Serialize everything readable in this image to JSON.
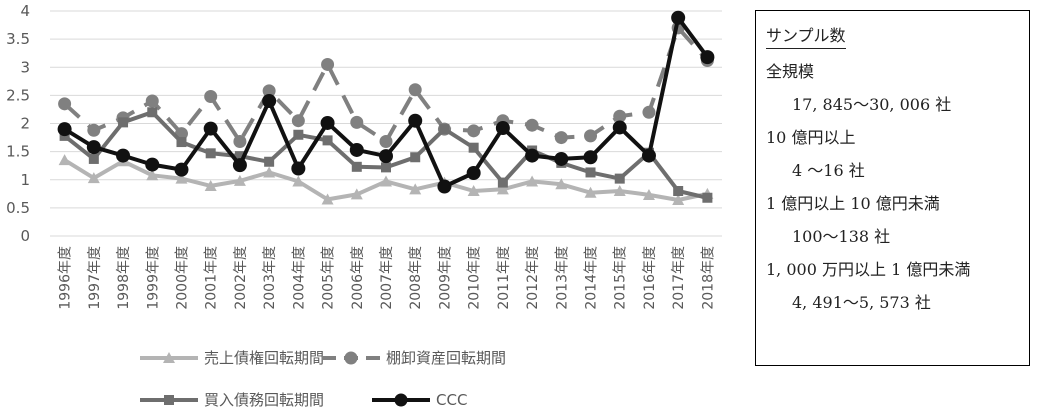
{
  "chart_data": {
    "type": "line",
    "title": "",
    "xlabel": "",
    "ylabel": "",
    "ylim": [
      0,
      4
    ],
    "yticks": [
      "0",
      "0.5",
      "1",
      "1.5",
      "2",
      "2.5",
      "3",
      "3.5",
      "4"
    ],
    "grid": "horizontal",
    "legend_position": "bottom",
    "categories": [
      "1996年度",
      "1997年度",
      "1998年度",
      "1999年度",
      "2000年度",
      "2001年度",
      "2002年度",
      "2003年度",
      "2004年度",
      "2005年度",
      "2006年度",
      "2007年度",
      "2008年度",
      "2009年度",
      "2010年度",
      "2011年度",
      "2012年度",
      "2013年度",
      "2014年度",
      "2015年度",
      "2016年度",
      "2017年度",
      "2018年度"
    ],
    "series": [
      {
        "name": "売上債権回転期間",
        "color": "#b4b4b4",
        "marker": "triangle",
        "dash": "solid",
        "values": [
          1.35,
          1.03,
          1.33,
          1.08,
          1.02,
          0.89,
          0.98,
          1.13,
          0.97,
          0.65,
          0.74,
          0.97,
          0.83,
          0.95,
          0.8,
          0.83,
          0.97,
          0.92,
          0.77,
          0.8,
          0.73,
          0.64,
          0.75
        ]
      },
      {
        "name": "棚卸資産回転期間",
        "color": "#808080",
        "marker": "circle",
        "dash": "dashed",
        "values": [
          2.35,
          1.88,
          2.1,
          2.4,
          1.82,
          2.48,
          1.68,
          2.58,
          2.05,
          3.05,
          2.02,
          1.68,
          2.6,
          1.9,
          1.87,
          2.05,
          1.97,
          1.75,
          1.78,
          2.13,
          2.2,
          3.7,
          3.12
        ]
      },
      {
        "name": "買入債務回転期間",
        "color": "#6e6e6e",
        "marker": "square",
        "dash": "solid",
        "values": [
          1.78,
          1.37,
          2.02,
          2.2,
          1.67,
          1.47,
          1.42,
          1.32,
          1.8,
          1.7,
          1.23,
          1.22,
          1.4,
          1.9,
          1.57,
          0.95,
          1.52,
          1.3,
          1.13,
          1.02,
          1.48,
          0.8,
          0.68
        ]
      },
      {
        "name": "CCC",
        "color": "#111111",
        "marker": "circle",
        "dash": "solid",
        "values": [
          1.9,
          1.58,
          1.43,
          1.27,
          1.18,
          1.91,
          1.26,
          2.4,
          1.2,
          2.01,
          1.53,
          1.42,
          2.05,
          0.88,
          1.12,
          1.92,
          1.43,
          1.37,
          1.4,
          1.93,
          1.43,
          3.88,
          3.18
        ]
      }
    ]
  },
  "info_box": {
    "title": "サンプル数",
    "lines": [
      {
        "text": "全規模",
        "indent": false
      },
      {
        "text": "17, 845〜30, 006 社",
        "indent": true
      },
      {
        "text": "10 億円以上",
        "indent": false
      },
      {
        "text": "4 〜16 社",
        "indent": true
      },
      {
        "text": "1 億円以上 10 億円未満",
        "indent": false
      },
      {
        "text": "100〜138 社",
        "indent": true
      },
      {
        "text": "1, 000 万円以上 1 億円未満",
        "indent": false
      },
      {
        "text": "4, 491〜5, 573 社",
        "indent": true
      }
    ]
  }
}
